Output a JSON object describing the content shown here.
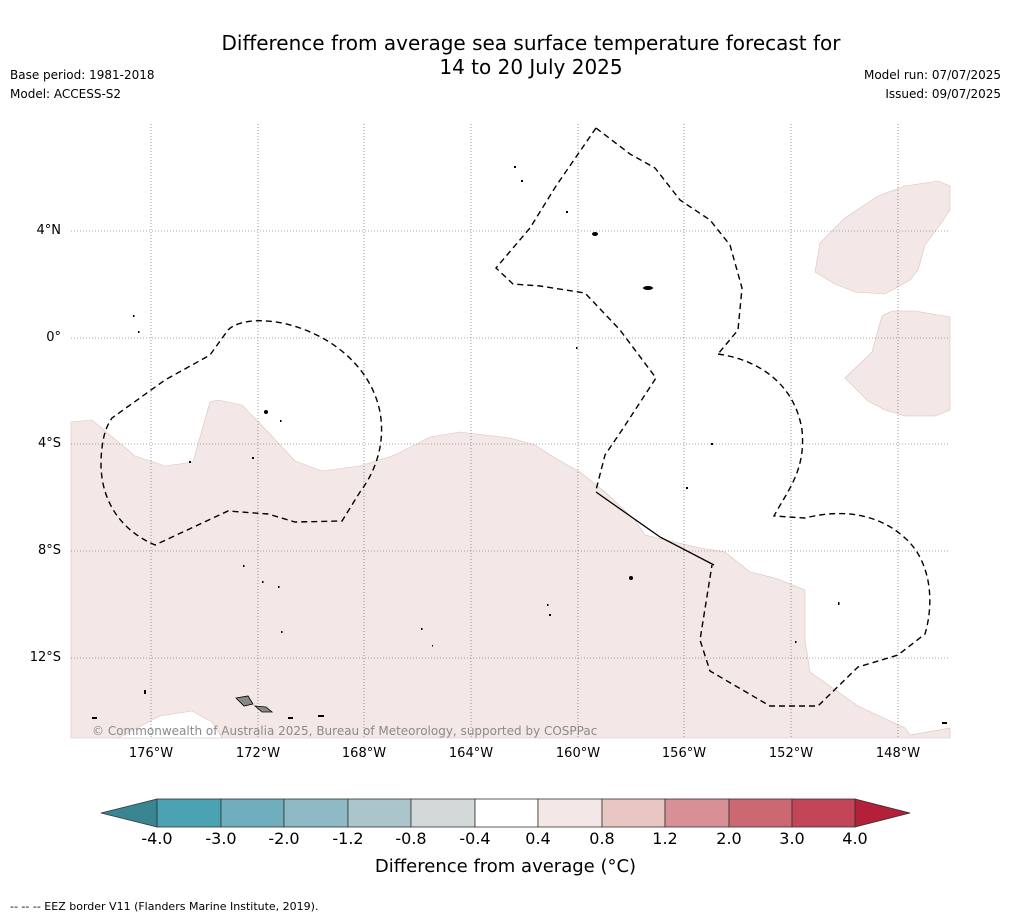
{
  "header": {
    "title_line1": "Difference from average sea surface temperature forecast for",
    "title_line2": "14 to 20 July 2025",
    "base_period": "Base period: 1981-2018",
    "model": "Model: ACCESS-S2",
    "model_run": "Model run: 07/07/2025",
    "issued": "Issued: 09/07/2025"
  },
  "map": {
    "lat_labels": [
      "4°N",
      "0°",
      "4°S",
      "8°S",
      "12°S"
    ],
    "lon_labels": [
      "176°W",
      "172°W",
      "168°W",
      "164°W",
      "160°W",
      "156°W",
      "152°W",
      "148°W"
    ],
    "copyright": "© Commonwealth of Australia 2025, Bureau of Meteorology, supported by COSPPac",
    "anomaly_fill_color": "#f4e8e7",
    "eez_line_style": "dashed black"
  },
  "colorbar": {
    "ticks": [
      "-4.0",
      "-3.0",
      "-2.0",
      "-1.2",
      "-0.8",
      "-0.4",
      "0.4",
      "0.8",
      "1.2",
      "2.0",
      "3.0",
      "4.0"
    ],
    "colors": [
      "#4aa2b2",
      "#6fafbd",
      "#8dbac4",
      "#aac6cb",
      "#d3d9d9",
      "#ffffff",
      "#f4e8e7",
      "#e8c6c2",
      "#d88f96",
      "#cb6872",
      "#c24658"
    ],
    "under_color": "#3a8592",
    "over_color": "#b41f3a",
    "label": "Difference from average (°C)"
  },
  "footer": {
    "note": "--  --  -- EEZ border V11 (Flanders Marine Institute, 2019)."
  }
}
